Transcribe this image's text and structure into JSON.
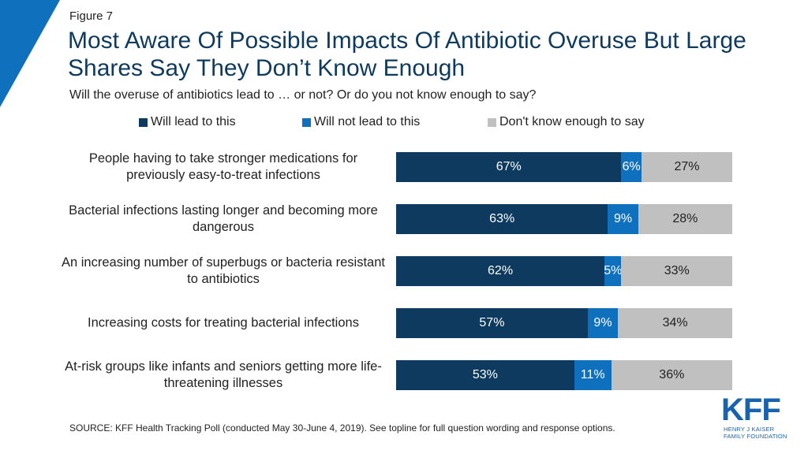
{
  "figure_label": "Figure 7",
  "chart_data": {
    "type": "stacked_bar_horizontal",
    "title": "Most Aware Of Possible Impacts Of Antibiotic Overuse But Large Shares Say They Don’t Know Enough",
    "subtitle": "Will the overuse of antibiotics lead to … or not? Or do you not know enough to say?",
    "categories": [
      "People having to take stronger medications for previously easy-to-treat infections",
      "Bacterial infections lasting longer and becoming more dangerous",
      "An increasing number of superbugs or bacteria resistant to antibiotics",
      "Increasing costs for treating bacterial infections",
      "At-risk groups like infants and seniors getting more life-threatening illnesses"
    ],
    "series": [
      {
        "name": "Will lead to this",
        "color": "#0d3a5e",
        "label_color": "#ffffff",
        "values": [
          67,
          63,
          62,
          57,
          53
        ],
        "value_labels": [
          "67%",
          "63%",
          "62%",
          "57%",
          "53%"
        ]
      },
      {
        "name": "Will not lead to this",
        "color": "#0f71be",
        "label_color": "#ffffff",
        "values": [
          6,
          9,
          5,
          9,
          11
        ],
        "value_labels": [
          "6%",
          "9%",
          "5%",
          "9%",
          "11%"
        ]
      },
      {
        "name": "Don't know enough to say",
        "color": "#c0c0c0",
        "label_color": "#222222",
        "values": [
          27,
          28,
          33,
          34,
          36
        ],
        "value_labels": [
          "27%",
          "28%",
          "33%",
          "34%",
          "36%"
        ]
      }
    ],
    "source": "SOURCE: KFF Health Tracking Poll (conducted May 30-June 4, 2019). See topline for full question wording and response options."
  },
  "logo": {
    "name": "KFF",
    "line1": "HENRY J KAISER",
    "line2": "FAMILY FOUNDATION"
  }
}
